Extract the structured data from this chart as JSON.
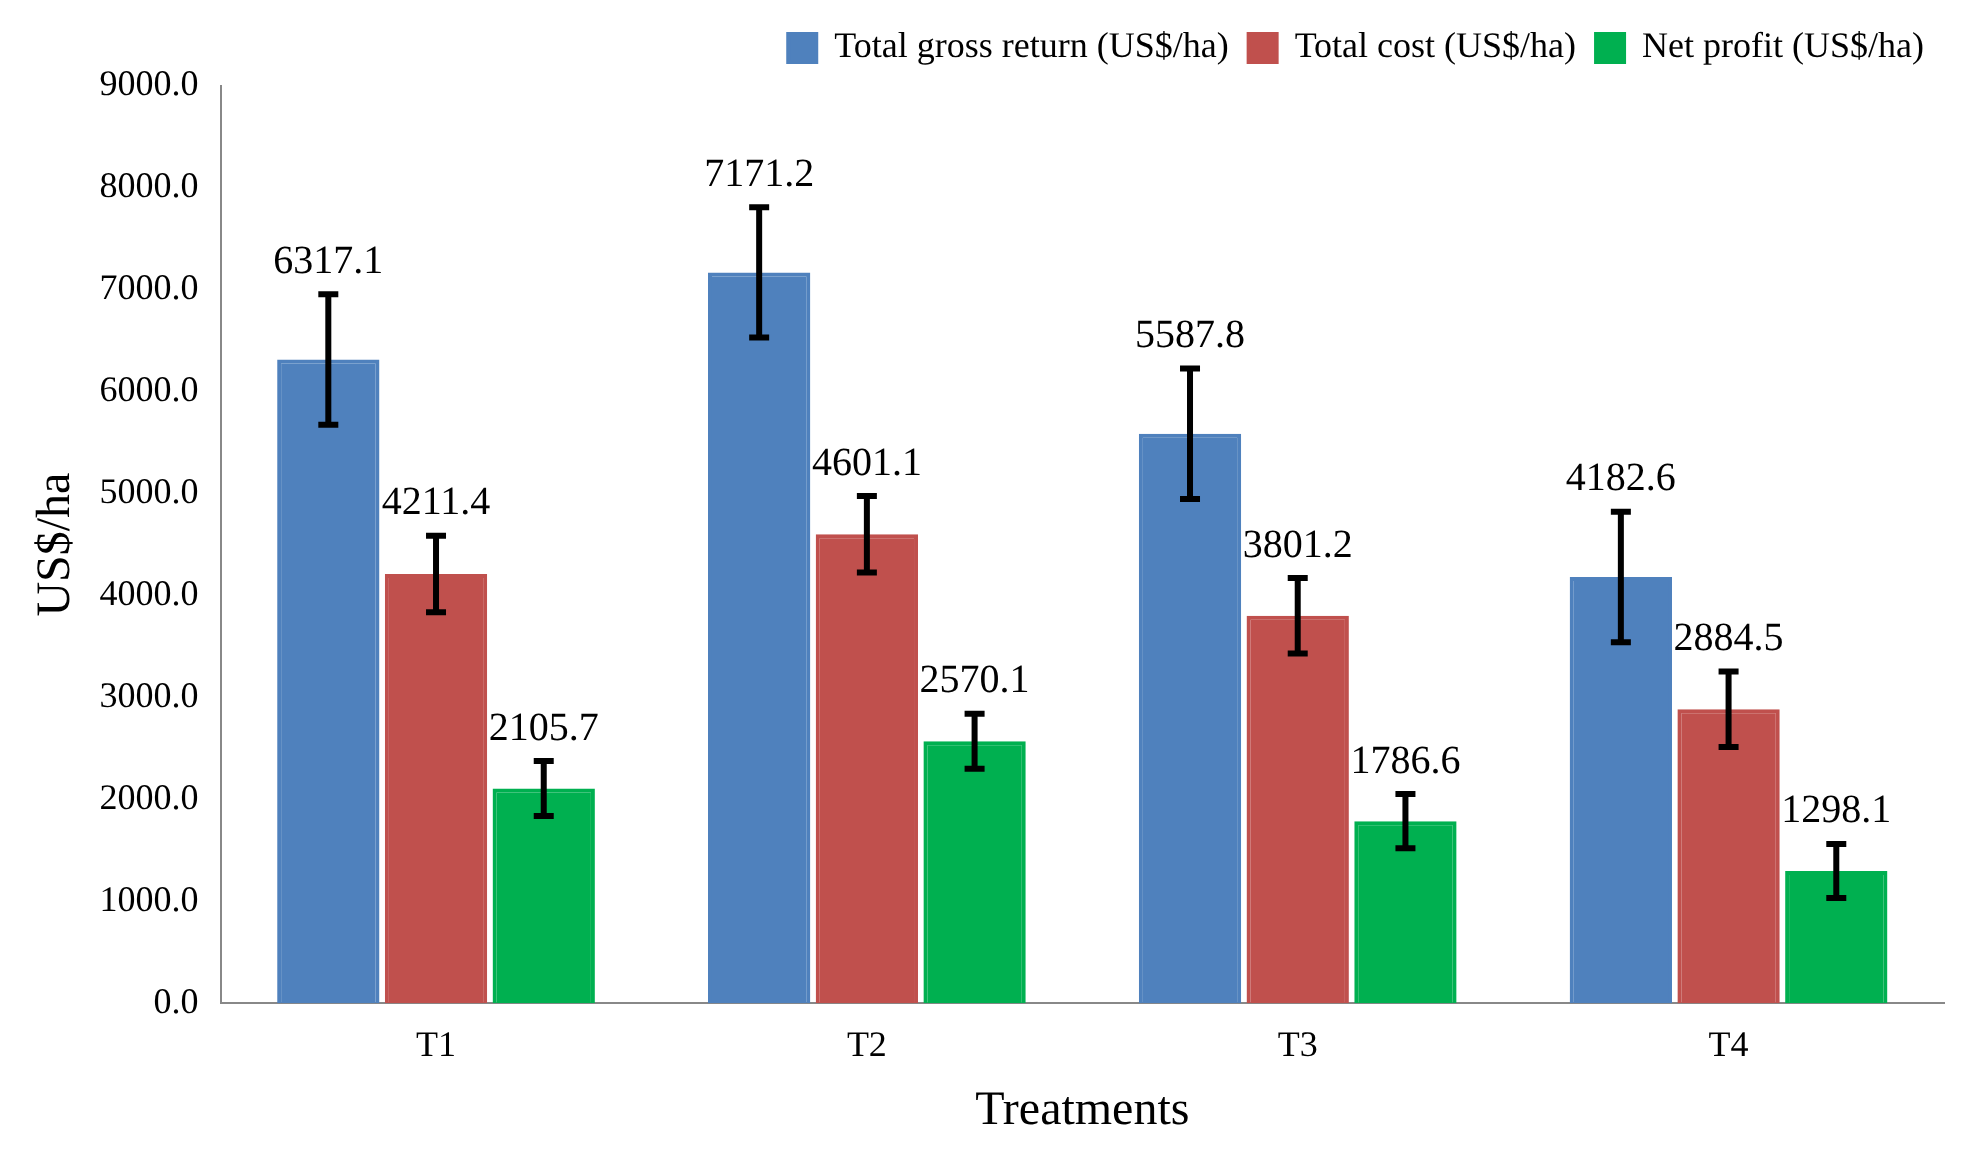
{
  "chart_data": {
    "type": "bar",
    "xlabel": "Treatments",
    "ylabel": "US$/ha",
    "categories": [
      "T1",
      "T2",
      "T3",
      "T4"
    ],
    "series": [
      {
        "name": "Total gross return (US$/ha)",
        "color": "#4f81bd",
        "values": [
          6317.1,
          7171.2,
          5587.8,
          4182.6
        ],
        "errors": [
          640,
          640,
          640,
          640
        ]
      },
      {
        "name": "Total cost (US$/ha)",
        "color": "#c0504d",
        "values": [
          4211.4,
          4601.1,
          3801.2,
          2884.5
        ],
        "errors": [
          375,
          375,
          370,
          370
        ]
      },
      {
        "name": "Net profit (US$/ha)",
        "color": "#00b050",
        "values": [
          2105.7,
          2570.1,
          1786.6,
          1298.1
        ],
        "errors": [
          270,
          270,
          265,
          265
        ]
      }
    ],
    "ylim": [
      0,
      9000
    ],
    "yticks": [
      {
        "value": 0,
        "label": "0.0"
      },
      {
        "value": 1000,
        "label": "1000.0"
      },
      {
        "value": 2000,
        "label": "2000.0"
      },
      {
        "value": 3000,
        "label": "3000.0"
      },
      {
        "value": 4000,
        "label": "4000.0"
      },
      {
        "value": 5000,
        "label": "5000.0"
      },
      {
        "value": 6000,
        "label": "6000.0"
      },
      {
        "value": 7000,
        "label": "7000.0"
      },
      {
        "value": 8000,
        "label": "8000.0"
      },
      {
        "value": 9000,
        "label": "9000.0"
      }
    ],
    "grid": false,
    "legend": "top right",
    "data_labels": true
  }
}
